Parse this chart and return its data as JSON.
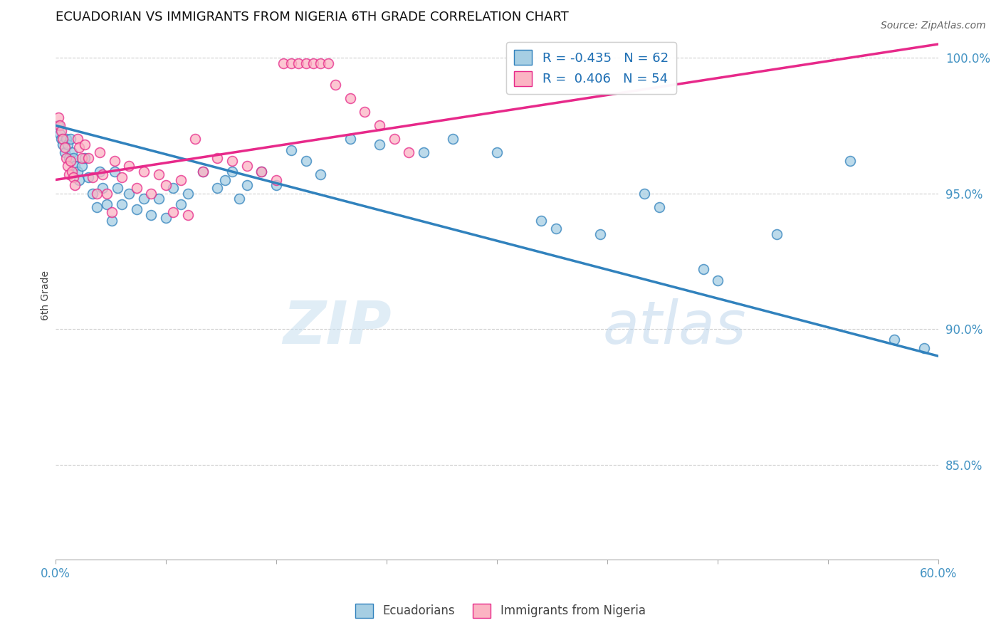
{
  "title": "ECUADORIAN VS IMMIGRANTS FROM NIGERIA 6TH GRADE CORRELATION CHART",
  "source": "Source: ZipAtlas.com",
  "ylabel": "6th Grade",
  "ylabel_ticks": [
    "100.0%",
    "95.0%",
    "90.0%",
    "85.0%"
  ],
  "ylabel_tick_vals": [
    1.0,
    0.95,
    0.9,
    0.85
  ],
  "xlim": [
    0.0,
    0.6
  ],
  "ylim": [
    0.815,
    1.01
  ],
  "R_blue": -0.435,
  "N_blue": 62,
  "R_pink": 0.406,
  "N_pink": 54,
  "blue_color": "#a6cee3",
  "pink_color": "#fbb4c3",
  "blue_line_color": "#3182bd",
  "pink_line_color": "#e7298a",
  "legend_label_blue": "Ecuadorians",
  "legend_label_pink": "Immigrants from Nigeria",
  "watermark_zip": "ZIP",
  "watermark_atlas": "atlas",
  "blue_points_x": [
    0.002,
    0.003,
    0.004,
    0.005,
    0.006,
    0.007,
    0.008,
    0.009,
    0.01,
    0.011,
    0.012,
    0.013,
    0.015,
    0.016,
    0.018,
    0.02,
    0.022,
    0.025,
    0.028,
    0.03,
    0.032,
    0.035,
    0.038,
    0.04,
    0.042,
    0.045,
    0.05,
    0.055,
    0.06,
    0.065,
    0.07,
    0.075,
    0.08,
    0.085,
    0.09,
    0.1,
    0.11,
    0.115,
    0.12,
    0.125,
    0.13,
    0.14,
    0.15,
    0.16,
    0.17,
    0.18,
    0.2,
    0.22,
    0.25,
    0.27,
    0.3,
    0.33,
    0.34,
    0.37,
    0.4,
    0.41,
    0.44,
    0.45,
    0.49,
    0.54,
    0.57,
    0.59
  ],
  "blue_points_y": [
    0.975,
    0.972,
    0.97,
    0.968,
    0.965,
    0.97,
    0.968,
    0.963,
    0.97,
    0.965,
    0.963,
    0.96,
    0.958,
    0.955,
    0.96,
    0.963,
    0.956,
    0.95,
    0.945,
    0.958,
    0.952,
    0.946,
    0.94,
    0.958,
    0.952,
    0.946,
    0.95,
    0.944,
    0.948,
    0.942,
    0.948,
    0.941,
    0.952,
    0.946,
    0.95,
    0.958,
    0.952,
    0.955,
    0.958,
    0.948,
    0.953,
    0.958,
    0.953,
    0.966,
    0.962,
    0.957,
    0.97,
    0.968,
    0.965,
    0.97,
    0.965,
    0.94,
    0.937,
    0.935,
    0.95,
    0.945,
    0.922,
    0.918,
    0.935,
    0.962,
    0.896,
    0.893
  ],
  "pink_points_x": [
    0.002,
    0.003,
    0.004,
    0.005,
    0.006,
    0.007,
    0.008,
    0.009,
    0.01,
    0.011,
    0.012,
    0.013,
    0.015,
    0.016,
    0.018,
    0.02,
    0.022,
    0.025,
    0.028,
    0.03,
    0.032,
    0.035,
    0.038,
    0.04,
    0.045,
    0.05,
    0.055,
    0.06,
    0.065,
    0.07,
    0.075,
    0.08,
    0.085,
    0.09,
    0.095,
    0.1,
    0.11,
    0.12,
    0.13,
    0.14,
    0.15,
    0.155,
    0.16,
    0.165,
    0.17,
    0.175,
    0.18,
    0.185,
    0.19,
    0.2,
    0.21,
    0.22,
    0.23,
    0.24
  ],
  "pink_points_y": [
    0.978,
    0.975,
    0.973,
    0.97,
    0.967,
    0.963,
    0.96,
    0.957,
    0.962,
    0.958,
    0.956,
    0.953,
    0.97,
    0.967,
    0.963,
    0.968,
    0.963,
    0.956,
    0.95,
    0.965,
    0.957,
    0.95,
    0.943,
    0.962,
    0.956,
    0.96,
    0.952,
    0.958,
    0.95,
    0.957,
    0.953,
    0.943,
    0.955,
    0.942,
    0.97,
    0.958,
    0.963,
    0.962,
    0.96,
    0.958,
    0.955,
    0.998,
    0.998,
    0.998,
    0.998,
    0.998,
    0.998,
    0.998,
    0.99,
    0.985,
    0.98,
    0.975,
    0.97,
    0.965
  ]
}
